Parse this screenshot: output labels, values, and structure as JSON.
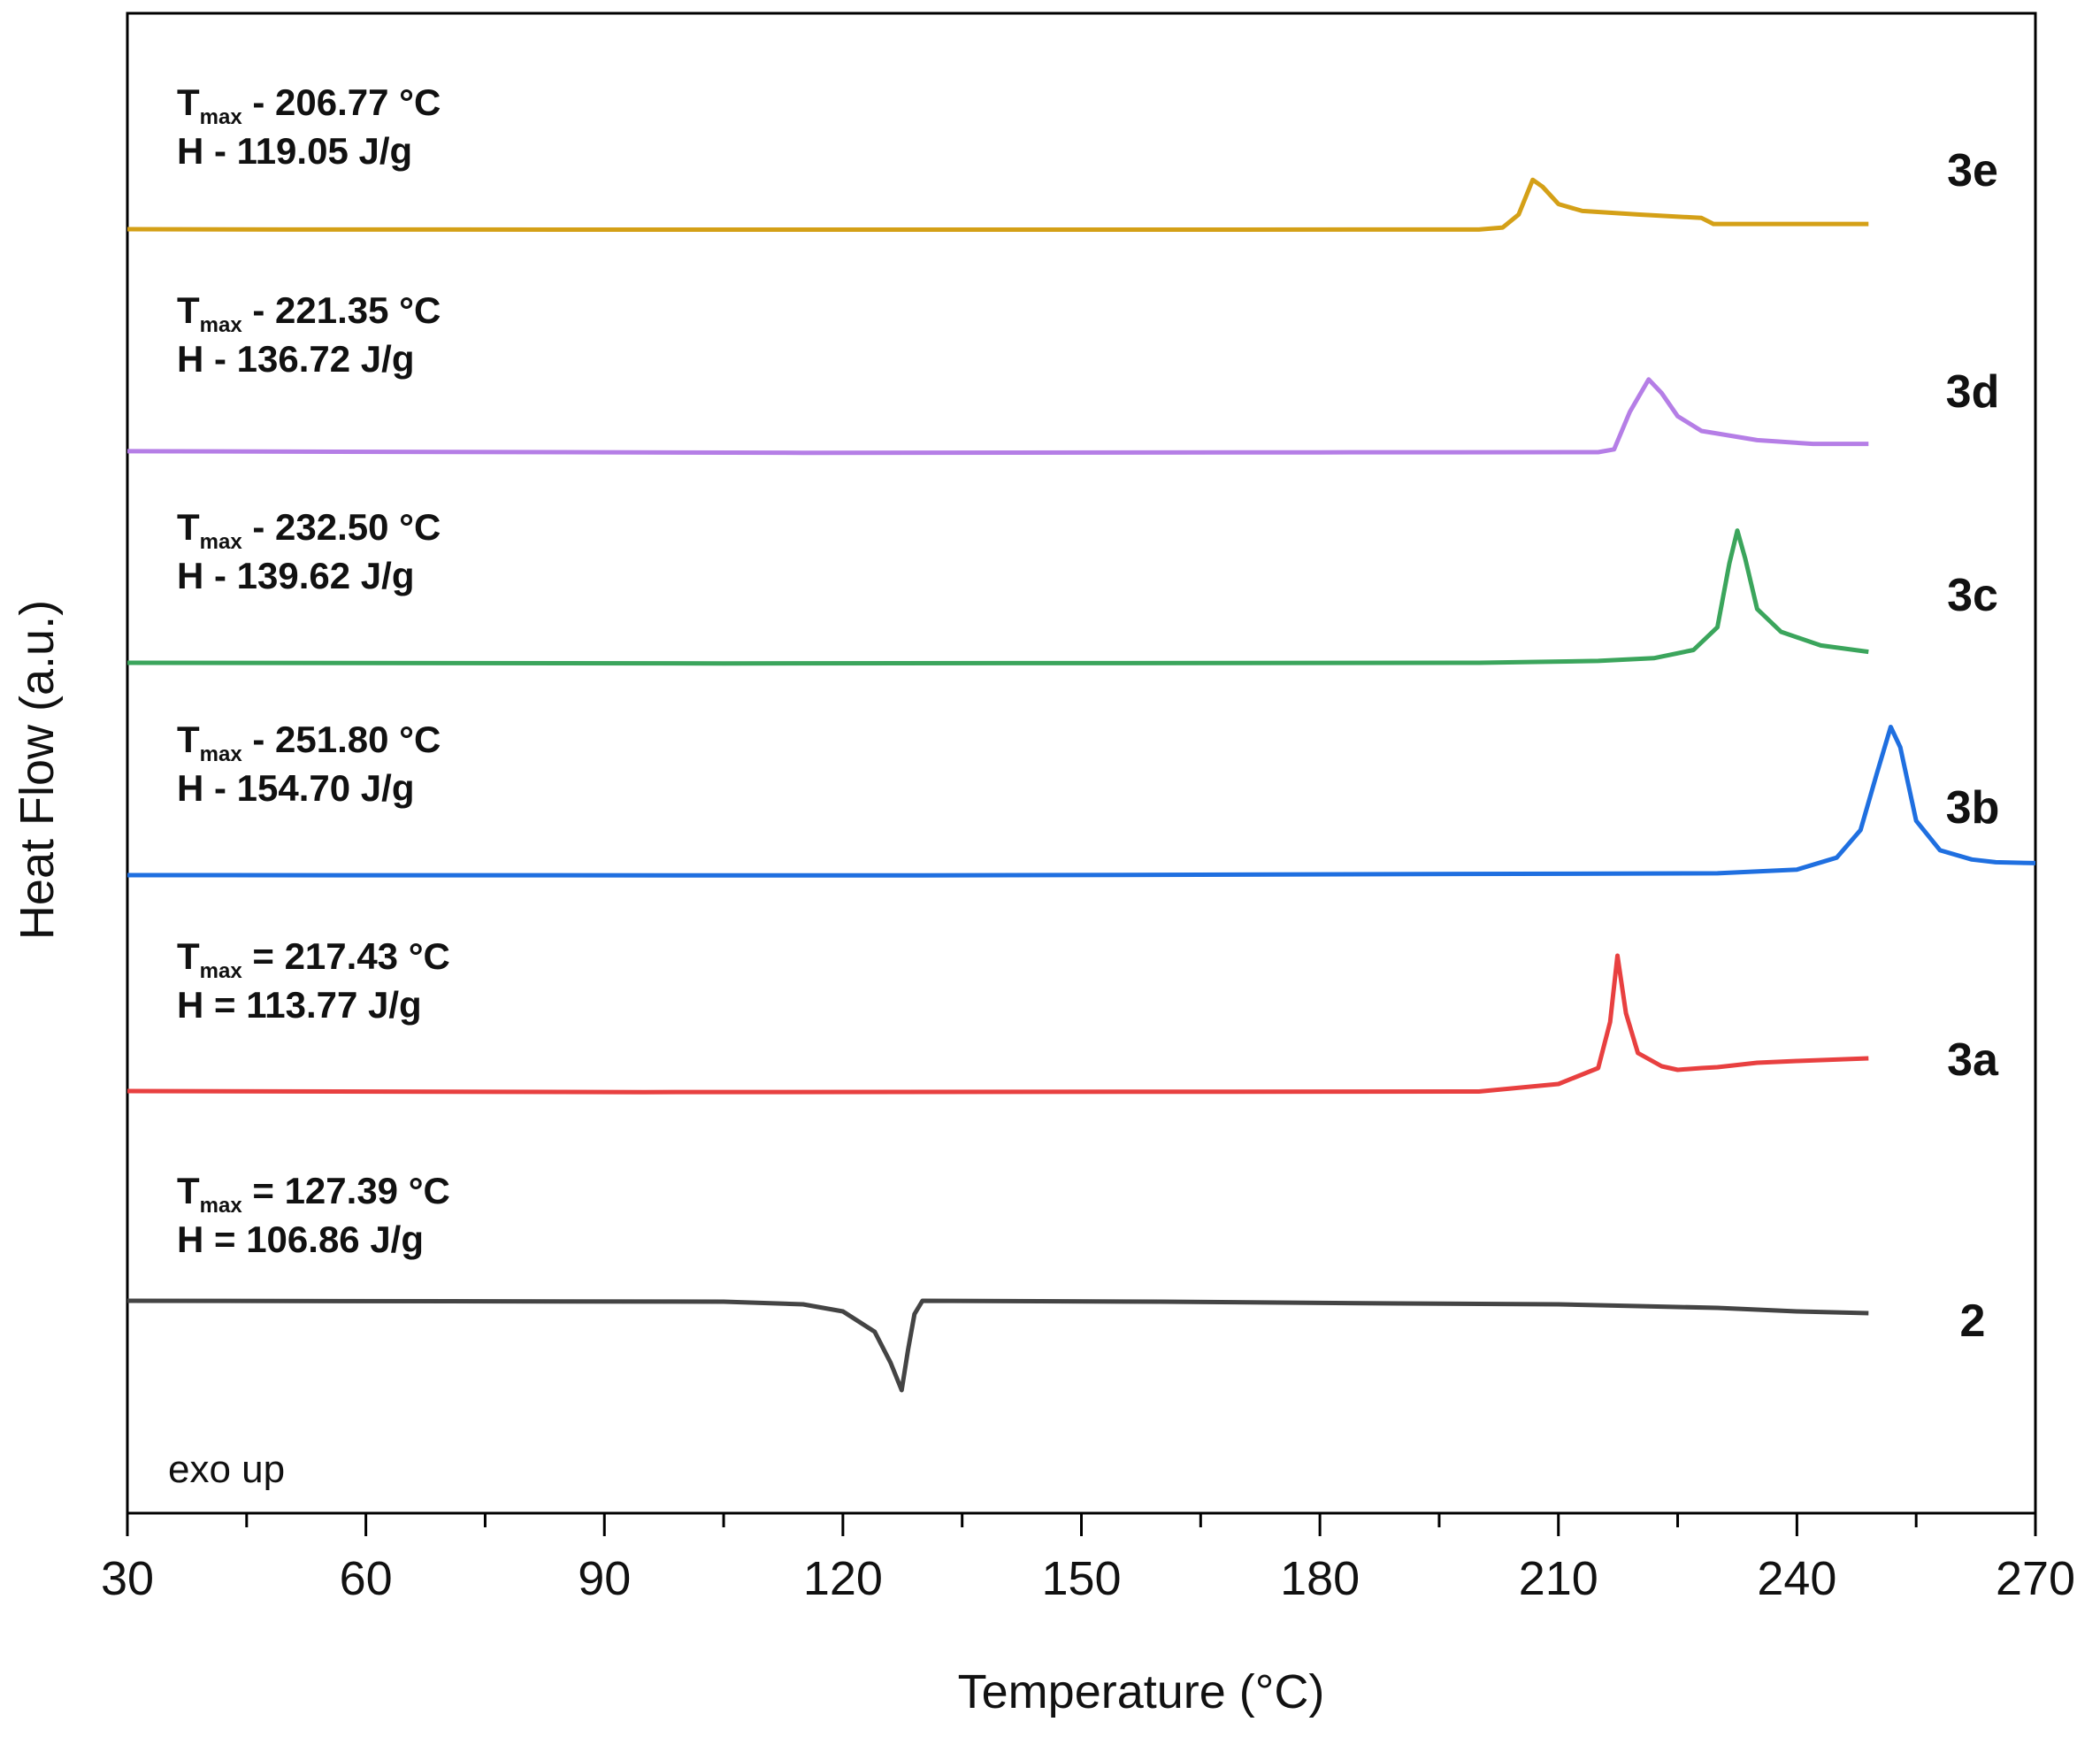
{
  "chart_data": {
    "type": "line",
    "xlabel": "Temperature (°C)",
    "ylabel": "Heat Flow (a.u.)",
    "xlim": [
      30,
      270
    ],
    "xticks": [
      30,
      60,
      90,
      120,
      150,
      180,
      210,
      240,
      270
    ],
    "note": "exo up",
    "series": [
      {
        "name": "3e",
        "color": "#d4a017",
        "ann": {
          "sym": "-",
          "t": "206.77",
          "h": "119.05"
        },
        "points": [
          [
            30,
            1
          ],
          [
            50,
            0.6
          ],
          [
            120,
            0.5
          ],
          [
            200,
            0.6
          ],
          [
            203,
            3
          ],
          [
            205,
            18
          ],
          [
            206.77,
            58
          ],
          [
            208,
            50
          ],
          [
            210,
            30
          ],
          [
            213,
            22
          ],
          [
            220,
            18
          ],
          [
            228,
            14
          ],
          [
            229.5,
            7
          ],
          [
            249,
            7
          ]
        ]
      },
      {
        "name": "3d",
        "color": "#b57ee6",
        "ann": {
          "sym": "-",
          "t": "221.35",
          "h": "136.72"
        },
        "points": [
          [
            30,
            2
          ],
          [
            115,
            0.3
          ],
          [
            180,
            0.8
          ],
          [
            215,
            1
          ],
          [
            217,
            4
          ],
          [
            219,
            45
          ],
          [
            221.35,
            80
          ],
          [
            223,
            65
          ],
          [
            225,
            40
          ],
          [
            228,
            24
          ],
          [
            235,
            14
          ],
          [
            242,
            10
          ],
          [
            249,
            10
          ]
        ]
      },
      {
        "name": "3c",
        "color": "#3ba55c",
        "ann": {
          "sym": "-",
          "t": "232.50",
          "h": "139.62"
        },
        "points": [
          [
            30,
            1
          ],
          [
            105,
            0.3
          ],
          [
            200,
            1
          ],
          [
            215,
            3
          ],
          [
            222,
            6
          ],
          [
            227,
            15
          ],
          [
            230,
            40
          ],
          [
            231.5,
            110
          ],
          [
            232.5,
            146
          ],
          [
            233.5,
            115
          ],
          [
            235,
            60
          ],
          [
            238,
            35
          ],
          [
            243,
            20
          ],
          [
            249,
            13
          ]
        ]
      },
      {
        "name": "3b",
        "color": "#1f6fe0",
        "ann": {
          "sym": "-",
          "t": "251.80",
          "h": "154.70"
        },
        "points": [
          [
            30,
            1
          ],
          [
            130,
            0.7
          ],
          [
            230,
            3
          ],
          [
            240,
            7
          ],
          [
            245,
            20
          ],
          [
            248,
            50
          ],
          [
            250,
            110
          ],
          [
            251.8,
            162
          ],
          [
            253,
            140
          ],
          [
            255,
            60
          ],
          [
            258,
            28
          ],
          [
            262,
            18
          ],
          [
            265,
            15
          ],
          [
            270,
            14
          ]
        ]
      },
      {
        "name": "3a",
        "color": "#e84040",
        "ann": {
          "sym": "=",
          "t": "217.43",
          "h": "113.77"
        },
        "points": [
          [
            30,
            2
          ],
          [
            95,
            0.8
          ],
          [
            200,
            1.5
          ],
          [
            210,
            10
          ],
          [
            215,
            28
          ],
          [
            216.5,
            80
          ],
          [
            217.43,
            155
          ],
          [
            218.5,
            90
          ],
          [
            220,
            45
          ],
          [
            223,
            30
          ],
          [
            225,
            26
          ],
          [
            228,
            28
          ],
          [
            230,
            29
          ],
          [
            235,
            34
          ],
          [
            240,
            36
          ],
          [
            249,
            39
          ]
        ]
      },
      {
        "name": "2",
        "color": "#444444",
        "ann": {
          "sym": "=",
          "t": "127.39",
          "h": "106.86"
        },
        "points": [
          [
            30,
            0
          ],
          [
            105,
            -1
          ],
          [
            115,
            -4
          ],
          [
            120,
            -12
          ],
          [
            124,
            -35
          ],
          [
            126,
            -70
          ],
          [
            127.39,
            -101
          ],
          [
            128.2,
            -55
          ],
          [
            129,
            -15
          ],
          [
            130,
            0
          ],
          [
            160,
            -1
          ],
          [
            190,
            -3
          ],
          [
            210,
            -4
          ],
          [
            220,
            -6
          ],
          [
            230,
            -8
          ],
          [
            240,
            -12
          ],
          [
            249,
            -14
          ]
        ]
      }
    ]
  }
}
